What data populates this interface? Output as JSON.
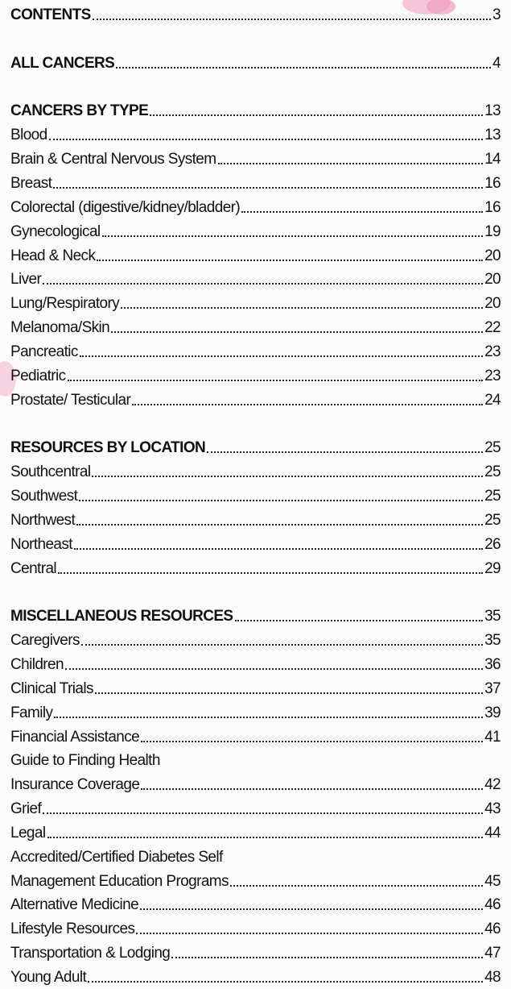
{
  "sections": [
    {
      "heading": "CONTENTS",
      "page": 3,
      "items": []
    },
    {
      "heading": "ALL CANCERS",
      "page": 4,
      "items": []
    },
    {
      "heading": "CANCERS BY TYPE",
      "page": 13,
      "items": [
        {
          "lines": [
            "Blood"
          ],
          "page": 13
        },
        {
          "lines": [
            "Brain & Central Nervous System"
          ],
          "page": 14
        },
        {
          "lines": [
            "Breast"
          ],
          "page": 16
        },
        {
          "lines": [
            "Colorectal (digestive/kidney/bladder)"
          ],
          "page": 16
        },
        {
          "lines": [
            "Gynecological"
          ],
          "page": 19
        },
        {
          "lines": [
            "Head & Neck"
          ],
          "page": 20
        },
        {
          "lines": [
            "Liver"
          ],
          "page": 20
        },
        {
          "lines": [
            "Lung/Respiratory"
          ],
          "page": 20
        },
        {
          "lines": [
            "Melanoma/Skin"
          ],
          "page": 22
        },
        {
          "lines": [
            "Pancreatic"
          ],
          "page": 23
        },
        {
          "lines": [
            "Pediatric"
          ],
          "page": 23
        },
        {
          "lines": [
            "Prostate/ Testicular"
          ],
          "page": 24
        }
      ]
    },
    {
      "heading": "RESOURCES BY LOCATION",
      "page": 25,
      "items": [
        {
          "lines": [
            "Southcentral"
          ],
          "page": 25
        },
        {
          "lines": [
            "Southwest"
          ],
          "page": 25
        },
        {
          "lines": [
            "Northwest"
          ],
          "page": 25
        },
        {
          "lines": [
            "Northeast"
          ],
          "page": 26
        },
        {
          "lines": [
            "Central"
          ],
          "page": 29
        }
      ]
    },
    {
      "heading": "MISCELLANEOUS RESOURCES",
      "page": 35,
      "items": [
        {
          "lines": [
            "Caregivers"
          ],
          "page": 35
        },
        {
          "lines": [
            "Children"
          ],
          "page": 36
        },
        {
          "lines": [
            "Clinical Trials"
          ],
          "page": 37
        },
        {
          "lines": [
            "Family"
          ],
          "page": 39
        },
        {
          "lines": [
            "Financial Assistance"
          ],
          "page": 41
        },
        {
          "lines": [
            "Guide to Finding Health",
            "Insurance Coverage"
          ],
          "page": 42
        },
        {
          "lines": [
            "Grief"
          ],
          "page": 43
        },
        {
          "lines": [
            "Legal"
          ],
          "page": 44
        },
        {
          "lines": [
            "Accredited/Certified Diabetes Self",
            "Management Education Programs"
          ],
          "page": 45
        },
        {
          "lines": [
            "Alternative Medicine"
          ],
          "page": 46
        },
        {
          "lines": [
            "Lifestyle Resources"
          ],
          "page": 46
        },
        {
          "lines": [
            "Transportation & Lodging"
          ],
          "page": 47
        },
        {
          "lines": [
            "Young Adult"
          ],
          "page": 48
        }
      ]
    }
  ]
}
